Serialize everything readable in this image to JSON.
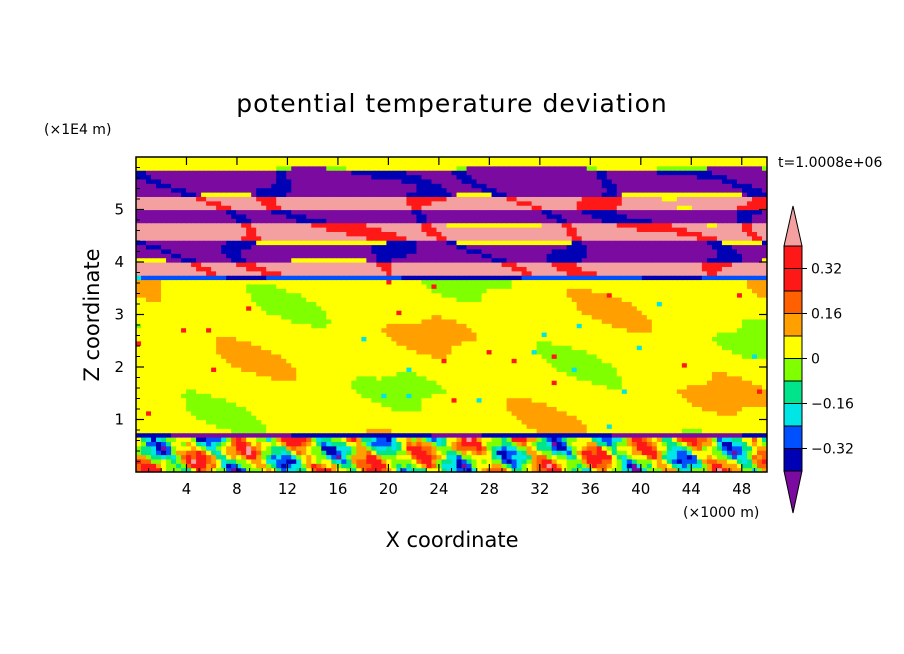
{
  "chart_data": {
    "type": "heatmap",
    "title": "potential temperature deviation",
    "xlabel": "X coordinate",
    "ylabel": "Z coordinate",
    "x_unit_label": "(×1000 m)",
    "y_unit_label": "(×1E4 m)",
    "time_label": "t=1.0008e+06",
    "xlim": [
      0,
      50
    ],
    "ylim": [
      0,
      6
    ],
    "x_ticks": [
      4,
      8,
      12,
      16,
      20,
      24,
      28,
      32,
      36,
      40,
      44,
      48
    ],
    "x_tick_labels": [
      "4",
      "8",
      "12",
      "16",
      "20",
      "24",
      "28",
      "32",
      "36",
      "40",
      "44",
      "48"
    ],
    "y_ticks": [
      1,
      2,
      3,
      4,
      5
    ],
    "y_tick_labels": [
      "1",
      "2",
      "3",
      "4",
      "5"
    ],
    "colorbar": {
      "levels": [
        -0.4,
        -0.32,
        -0.24,
        -0.16,
        -0.08,
        0,
        0.08,
        0.16,
        0.24,
        0.32,
        0.4
      ],
      "tick_values": [
        -0.32,
        -0.16,
        0,
        0.16,
        0.32
      ],
      "tick_labels": [
        "−0.32",
        "−0.16",
        "0",
        "0.16",
        "0.32"
      ],
      "colors": [
        "#0000b4",
        "#0050ff",
        "#00e5e5",
        "#00e58c",
        "#80ff00",
        "#ffff00",
        "#ffa000",
        "#ff6000",
        "#ff1818",
        "#ff1818"
      ],
      "under_color": "#7a0aa0",
      "over_color": "#f5a0a0",
      "extend": "both"
    },
    "bands": [
      {
        "z": [
          5.8,
          6.0
        ],
        "value": 0.0,
        "pattern": "layered"
      },
      {
        "z": [
          5.25,
          5.8
        ],
        "value": -0.45,
        "pattern": "layered"
      },
      {
        "z": [
          5.0,
          5.25
        ],
        "value": 0.45,
        "pattern": "layered"
      },
      {
        "z": [
          4.75,
          5.0
        ],
        "value": -0.45,
        "pattern": "layered"
      },
      {
        "z": [
          4.4,
          4.75
        ],
        "value": 0.45,
        "pattern": "layered"
      },
      {
        "z": [
          4.0,
          4.4
        ],
        "value": -0.45,
        "pattern": "layered"
      },
      {
        "z": [
          3.75,
          4.0
        ],
        "value": 0.45,
        "pattern": "layered"
      },
      {
        "z": [
          3.65,
          3.75
        ],
        "value": -0.3,
        "pattern": "interface"
      },
      {
        "z": [
          0.75,
          3.65
        ],
        "value": 0.04,
        "pattern": "mixed"
      },
      {
        "z": [
          0.7,
          0.75
        ],
        "value": -0.4,
        "pattern": "interface"
      },
      {
        "z": [
          0.0,
          0.7
        ],
        "value": 0.0,
        "pattern": "turbulent"
      }
    ]
  }
}
